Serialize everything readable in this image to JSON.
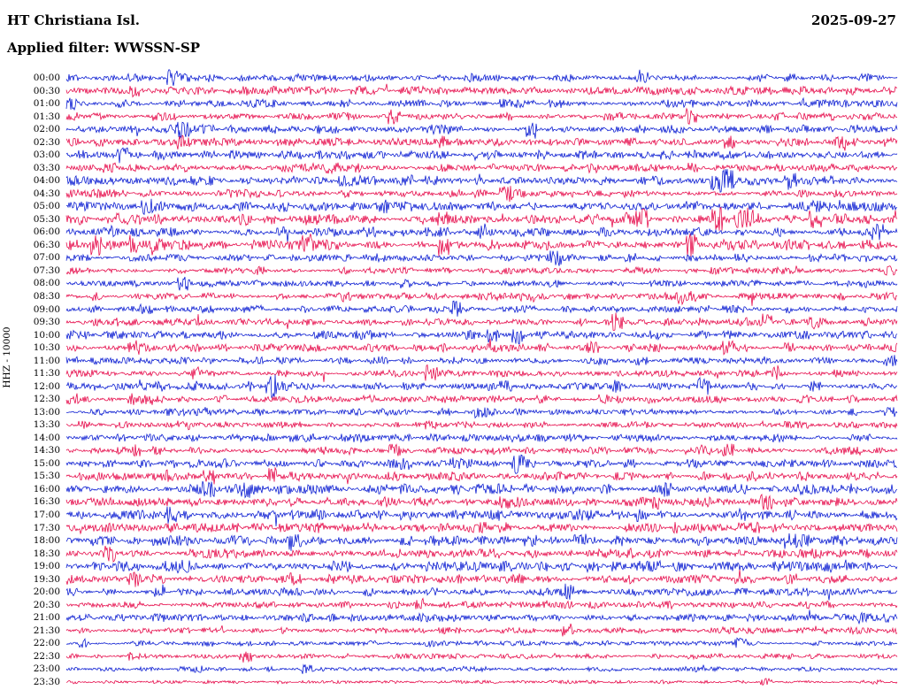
{
  "header": {
    "station": "HT Christiana Isl.",
    "date": "2025-09-27",
    "filter": "Applied filter: WWSSN-SP"
  },
  "axis": {
    "y_label": "HHZ - 10000"
  },
  "chart_data": {
    "type": "line",
    "chart_kind": "helicorder-seismogram",
    "title": "HT Christiana Isl.",
    "subtitle": "Applied filter: WWSSN-SP",
    "date": "2025-09-27",
    "ylabel": "HHZ - 10000",
    "minutes_per_row": 30,
    "rows_start": "00:00",
    "rows_end": "23:30",
    "legend_position": "none",
    "grid": false,
    "trace_colors": {
      "blue": "#0013d0",
      "red": "#e50043"
    },
    "rows": [
      {
        "time": "00:00",
        "color": "blue",
        "amp": 1.0
      },
      {
        "time": "00:30",
        "color": "red",
        "amp": 1.05
      },
      {
        "time": "01:00",
        "color": "blue",
        "amp": 1.0
      },
      {
        "time": "01:30",
        "color": "red",
        "amp": 0.95
      },
      {
        "time": "02:00",
        "color": "blue",
        "amp": 1.1
      },
      {
        "time": "02:30",
        "color": "red",
        "amp": 1.0
      },
      {
        "time": "03:00",
        "color": "blue",
        "amp": 1.1
      },
      {
        "time": "03:30",
        "color": "red",
        "amp": 1.0
      },
      {
        "time": "04:00",
        "color": "blue",
        "amp": 1.15,
        "burst": {
          "pos": 0.79,
          "gain": 2.0
        }
      },
      {
        "time": "04:30",
        "color": "red",
        "amp": 1.0
      },
      {
        "time": "05:00",
        "color": "blue",
        "amp": 1.25
      },
      {
        "time": "05:30",
        "color": "red",
        "amp": 1.3,
        "burst": {
          "pos": 0.82,
          "gain": 2.0
        }
      },
      {
        "time": "06:00",
        "color": "blue",
        "amp": 1.2
      },
      {
        "time": "06:30",
        "color": "red",
        "amp": 1.25
      },
      {
        "time": "07:00",
        "color": "blue",
        "amp": 0.85
      },
      {
        "time": "07:30",
        "color": "red",
        "amp": 0.8
      },
      {
        "time": "08:00",
        "color": "blue",
        "amp": 0.75
      },
      {
        "time": "08:30",
        "color": "red",
        "amp": 0.9
      },
      {
        "time": "09:00",
        "color": "blue",
        "amp": 0.9
      },
      {
        "time": "09:30",
        "color": "red",
        "amp": 1.0,
        "burst": {
          "pos": 0.9,
          "gain": 2.2
        }
      },
      {
        "time": "10:00",
        "color": "blue",
        "amp": 1.0
      },
      {
        "time": "10:30",
        "color": "red",
        "amp": 0.95,
        "burst": {
          "pos": 0.09,
          "gain": 2.5
        }
      },
      {
        "time": "11:00",
        "color": "blue",
        "amp": 0.9
      },
      {
        "time": "11:30",
        "color": "red",
        "amp": 0.85
      },
      {
        "time": "12:00",
        "color": "blue",
        "amp": 0.9,
        "burst": {
          "pos": 0.26,
          "gain": 3.5
        }
      },
      {
        "time": "12:30",
        "color": "red",
        "amp": 0.9
      },
      {
        "time": "13:00",
        "color": "blue",
        "amp": 0.85
      },
      {
        "time": "13:30",
        "color": "red",
        "amp": 0.8
      },
      {
        "time": "14:00",
        "color": "blue",
        "amp": 1.0
      },
      {
        "time": "14:30",
        "color": "red",
        "amp": 1.0
      },
      {
        "time": "15:00",
        "color": "blue",
        "amp": 1.1
      },
      {
        "time": "15:30",
        "color": "red",
        "amp": 1.05
      },
      {
        "time": "16:00",
        "color": "blue",
        "amp": 1.25
      },
      {
        "time": "16:30",
        "color": "red",
        "amp": 1.15
      },
      {
        "time": "17:00",
        "color": "blue",
        "amp": 1.3
      },
      {
        "time": "17:30",
        "color": "red",
        "amp": 1.25
      },
      {
        "time": "18:00",
        "color": "blue",
        "amp": 1.3,
        "burst": {
          "pos": 0.27,
          "gain": 2.0
        }
      },
      {
        "time": "18:30",
        "color": "red",
        "amp": 1.25
      },
      {
        "time": "19:00",
        "color": "blue",
        "amp": 1.3
      },
      {
        "time": "19:30",
        "color": "red",
        "amp": 1.1
      },
      {
        "time": "20:00",
        "color": "blue",
        "amp": 0.95
      },
      {
        "time": "20:30",
        "color": "red",
        "amp": 0.9
      },
      {
        "time": "21:00",
        "color": "blue",
        "amp": 1.0
      },
      {
        "time": "21:30",
        "color": "red",
        "amp": 0.8
      },
      {
        "time": "22:00",
        "color": "blue",
        "amp": 0.6
      },
      {
        "time": "22:30",
        "color": "red",
        "amp": 0.65
      },
      {
        "time": "23:00",
        "color": "blue",
        "amp": 0.6
      },
      {
        "time": "23:30",
        "color": "red",
        "amp": 0.4
      }
    ]
  }
}
